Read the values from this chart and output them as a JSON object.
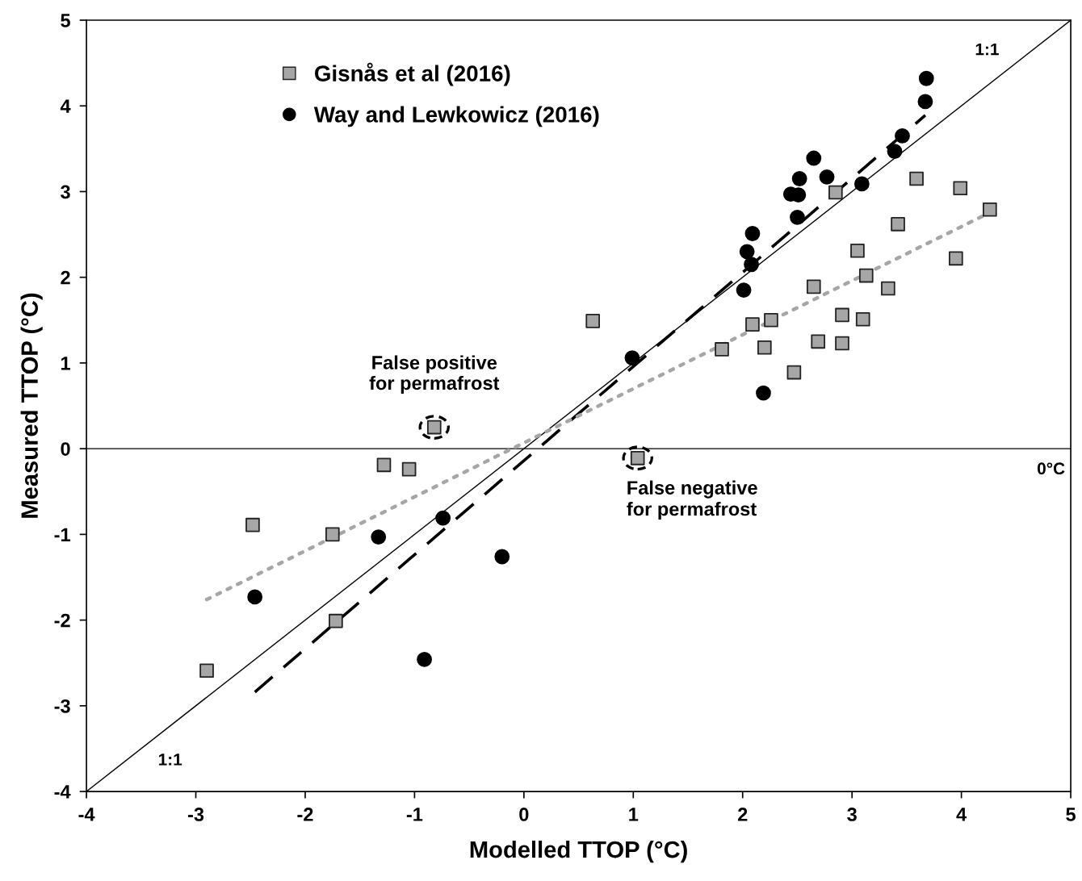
{
  "chart_data": {
    "type": "scatter",
    "xlabel": "Modelled TTOP (°C)",
    "ylabel": "Measured TTOP (°C)",
    "xlim": [
      -4,
      5
    ],
    "ylim": [
      -4,
      5
    ],
    "xticks": [
      -4,
      -3,
      -2,
      -1,
      0,
      1,
      2,
      3,
      4,
      5
    ],
    "yticks": [
      -4,
      -3,
      -2,
      -1,
      0,
      1,
      2,
      3,
      4,
      5
    ],
    "grid": false,
    "legend": "top left",
    "series": [
      {
        "name": "Gisnås et al (2016)",
        "color": "#a6a6a6",
        "marker": "square",
        "x": [
          -2.9,
          -2.48,
          -1.75,
          -1.72,
          -1.28,
          -1.05,
          -0.82,
          0.63,
          1.04,
          1.81,
          2.09,
          2.2,
          2.26,
          2.47,
          2.65,
          2.69,
          2.85,
          2.91,
          2.91,
          3.05,
          3.1,
          3.13,
          3.33,
          3.42,
          3.59,
          3.95,
          3.99,
          4.26
        ],
        "values": [
          -2.59,
          -0.89,
          -1.0,
          -2.01,
          -0.19,
          -0.24,
          0.25,
          1.49,
          -0.11,
          1.16,
          1.45,
          1.18,
          1.5,
          0.89,
          1.89,
          1.25,
          2.99,
          1.56,
          1.23,
          2.31,
          1.51,
          2.02,
          1.87,
          2.62,
          3.15,
          2.22,
          3.04,
          2.79
        ]
      },
      {
        "name": "Way and Lewkowicz (2016)",
        "color": "#000000",
        "marker": "circle",
        "x": [
          -2.46,
          -1.33,
          -0.91,
          -0.74,
          -0.2,
          0.99,
          2.01,
          2.19,
          2.04,
          2.08,
          2.09,
          2.44,
          2.51,
          2.5,
          2.52,
          2.65,
          2.77,
          3.09,
          3.39,
          3.46,
          3.67,
          3.68
        ],
        "values": [
          -1.73,
          -1.03,
          -2.46,
          -0.81,
          -1.26,
          1.06,
          1.85,
          0.65,
          2.3,
          2.15,
          2.51,
          2.97,
          2.96,
          2.7,
          3.15,
          3.39,
          3.17,
          3.09,
          3.47,
          3.65,
          4.05,
          4.32
        ]
      },
      {
        "type": "line",
        "color": "#000000",
        "line_style": "solid",
        "x": [
          -4,
          5
        ],
        "values": [
          -4,
          5
        ]
      },
      {
        "type": "line",
        "color": "#000000",
        "line_style": "dashed",
        "x": [
          -2.46,
          3.67
        ],
        "values": [
          -2.84,
          3.89
        ]
      },
      {
        "type": "line",
        "color": "#a6a6a6",
        "line_style": "dotted",
        "x": [
          -2.9,
          4.3
        ],
        "values": [
          -1.76,
          2.78
        ]
      }
    ],
    "ref_lines": [
      {
        "axis": "y",
        "value": 0,
        "label": "0°C",
        "color": "#000000"
      }
    ],
    "annotations": [
      {
        "text": "False positive\nfor permafrost",
        "x": -0.82,
        "y": 0.25
      },
      {
        "text": "False negative\nfor permafrost",
        "x": 1.04,
        "y": -0.11
      },
      {
        "text": "1:1",
        "x": 4.5,
        "y": 4.5
      },
      {
        "text": "1:1",
        "x": -3.5,
        "y": -3.5
      }
    ]
  }
}
